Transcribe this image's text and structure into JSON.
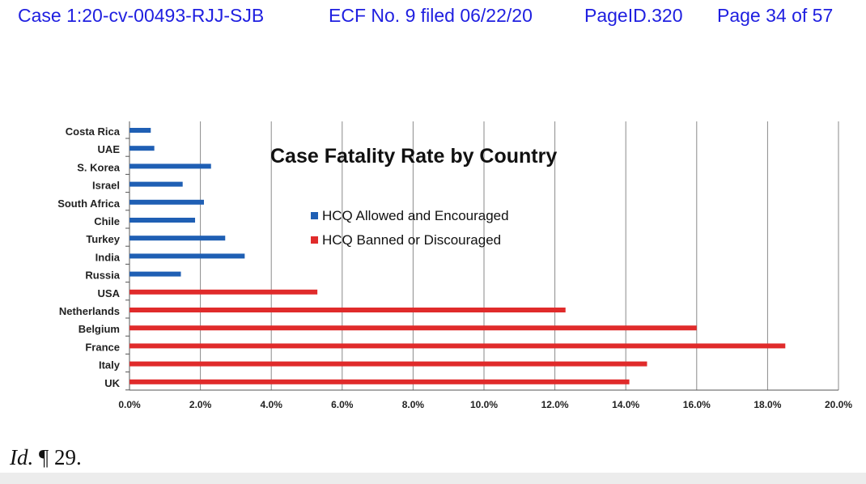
{
  "header": {
    "case": "Case 1:20-cv-00493-RJJ-SJB",
    "ecf": "ECF No. 9 filed 06/22/20",
    "page_id": "PageID.320",
    "page": "Page 34 of 57"
  },
  "citation": {
    "id": "Id.",
    "para": " ¶ 29."
  },
  "colors": {
    "header_text": "#1f1fe0",
    "series_allowed": "#1f5fb4",
    "series_banned": "#e02b2b",
    "gridline": "#8a8a8a"
  },
  "chart_data": {
    "type": "bar",
    "orientation": "horizontal",
    "title": "Case Fatality Rate by Country",
    "categories": [
      "Costa Rica",
      "UAE",
      "S. Korea",
      "Israel",
      "South Africa",
      "Chile",
      "Turkey",
      "India",
      "Russia",
      "USA",
      "Netherlands",
      "Belgium",
      "France",
      "Italy",
      "UK"
    ],
    "series": [
      {
        "name": "HCQ Allowed and Encouraged",
        "color": "#1f5fb4",
        "values": [
          0.6,
          0.7,
          2.3,
          1.5,
          2.1,
          1.85,
          2.7,
          3.25,
          1.45,
          null,
          null,
          null,
          null,
          null,
          null
        ]
      },
      {
        "name": "HCQ Banned or Discouraged",
        "color": "#e02b2b",
        "values": [
          null,
          null,
          null,
          null,
          null,
          null,
          null,
          null,
          null,
          5.3,
          12.3,
          16.0,
          18.5,
          14.6,
          14.1
        ]
      }
    ],
    "xlim": [
      0,
      20
    ],
    "ticks": [
      "0.0%",
      "2.0%",
      "4.0%",
      "6.0%",
      "8.0%",
      "10.0%",
      "12.0%",
      "14.0%",
      "16.0%",
      "18.0%",
      "20.0%"
    ],
    "value_unit": "%",
    "grid": true,
    "legend_placement": "center-left"
  }
}
